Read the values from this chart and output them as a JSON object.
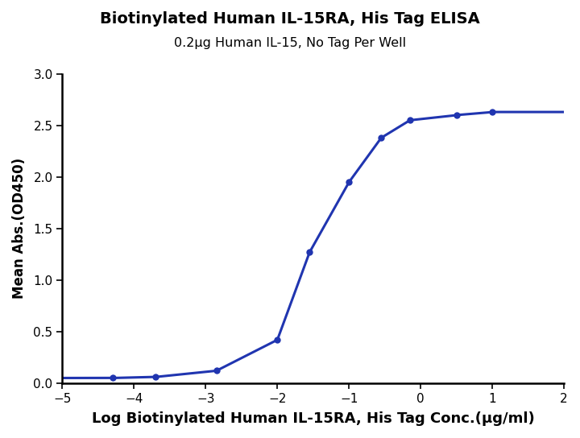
{
  "title": "Biotinylated Human IL-15RA, His Tag ELISA",
  "subtitle": "0.2μg Human IL-15, No Tag Per Well",
  "xlabel": "Log Biotinylated Human IL-15RA, His Tag Conc.(μg/ml)",
  "ylabel": "Mean Abs.(OD450)",
  "xlim": [
    -5,
    2
  ],
  "ylim": [
    0.0,
    3.0
  ],
  "xticks": [
    -5,
    -4,
    -3,
    -2,
    -1,
    0,
    1,
    2
  ],
  "yticks": [
    0.0,
    0.5,
    1.0,
    1.5,
    2.0,
    2.5,
    3.0
  ],
  "data_x": [
    -4.3,
    -3.7,
    -2.85,
    -2.0,
    -1.55,
    -1.0,
    -0.55,
    -0.15,
    0.5,
    1.0
  ],
  "data_y": [
    0.05,
    0.06,
    0.12,
    0.42,
    1.27,
    1.95,
    2.38,
    2.55,
    2.6,
    2.63
  ],
  "line_color": "#2035b0",
  "marker_color": "#2035b0",
  "marker_size": 6,
  "line_width": 2.2,
  "title_fontsize": 14,
  "subtitle_fontsize": 11.5,
  "xlabel_fontsize": 13,
  "ylabel_fontsize": 12,
  "tick_fontsize": 11,
  "background_color": "#ffffff",
  "spine_color": "#000000"
}
